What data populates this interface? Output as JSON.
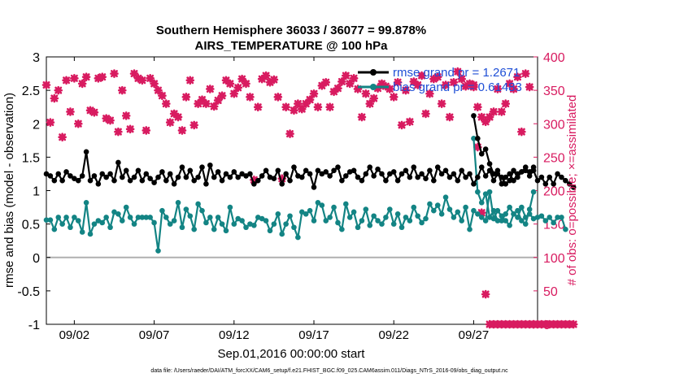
{
  "chart_data": {
    "type": "line",
    "title": "Southern Hemisphere 36033 / 36077 = 99.878%",
    "subtitle": "AIRS_TEMPERATURE @ 100 hPa",
    "xlabel": "Sep.01,2016 00:00:00 start",
    "ylabel_left": "rmse and bias (model - observation)",
    "ylabel_right": "# of obs: o=possible; ×=assimilated",
    "ylim_left": [
      -1,
      3
    ],
    "ylim_right": [
      0,
      400
    ],
    "xlim": [
      0.25,
      31.0
    ],
    "yticks_left": [
      "3",
      "2.5",
      "2",
      "1.5",
      "1",
      "0.5",
      "0",
      "-0.5",
      "-1"
    ],
    "yticks_right": [
      "400",
      "350",
      "300",
      "250",
      "200",
      "150",
      "100",
      "50",
      "0"
    ],
    "xticks": [
      {
        "label": "09/02",
        "day": 2
      },
      {
        "label": "09/07",
        "day": 7
      },
      {
        "label": "09/12",
        "day": 12
      },
      {
        "label": "09/17",
        "day": 17
      },
      {
        "label": "09/22",
        "day": 22
      },
      {
        "label": "09/27",
        "day": 27
      }
    ],
    "legend": [
      {
        "name": "rmse grand pr = 1.2671",
        "color": "#000000"
      },
      {
        "name": "bias grand pr = 0.61483",
        "color": "#138484"
      }
    ],
    "footer": "data file: /Users/raeder/DAI/ATM_forcXX/CAM6_setup/f.e21.FHIST_BGC.f09_025.CAM6assim.011/Diags_NTrS_2016-09/obs_diag_output.nc",
    "colors": {
      "rmse": "#000000",
      "bias": "#138484",
      "obs": "#d81b60",
      "zero_line": "#b0b0b0"
    },
    "start_day": 0.25,
    "step_days": 0.25,
    "series": [
      {
        "name": "rmse",
        "segments": [
          {
            "start": 0,
            "values": [
              1.25,
              1.22,
              1.15,
              1.25,
              1.15,
              1.28,
              1.22,
              1.18,
              1.15,
              1.22,
              1.58,
              1.15,
              1.22,
              1.1,
              1.25,
              1.2,
              1.25,
              1.15,
              1.42,
              1.2,
              1.3,
              1.15,
              1.2,
              1.3,
              1.15,
              1.25,
              1.18,
              1.12,
              1.2,
              1.28,
              1.15,
              1.25,
              1.1,
              1.2,
              1.35,
              1.2,
              1.3,
              1.15,
              1.2,
              1.35,
              1.1,
              1.38,
              1.2,
              1.28,
              1.15,
              1.25,
              1.2,
              1.28,
              1.2,
              1.25,
              1.22,
              1.25,
              1.1,
              1.15,
              1.22,
              1.3,
              1.2,
              1.18,
              1.3,
              1.1,
              1.25,
              1.15,
              1.35,
              1.22,
              1.2,
              1.3,
              1.25,
              1.05,
              1.3,
              1.25,
              1.28,
              1.22,
              1.3,
              1.35,
              1.15,
              1.22,
              1.28,
              1.3,
              1.2,
              1.15,
              1.25,
              1.35,
              1.22,
              1.32,
              1.25,
              1.15,
              1.25,
              1.28,
              1.15,
              1.25,
              1.3,
              1.2,
              1.35,
              1.2,
              1.25,
              1.18,
              1.3,
              1.15,
              1.35,
              1.25,
              1.3,
              1.2,
              1.25,
              1.15,
              1.3,
              1.2,
              1.25,
              1.1,
              1.2,
              1.35,
              1.22,
              1.3,
              1.15,
              1.25,
              1.2,
              1.1,
              1.15,
              1.3,
              1.2,
              1.28,
              1.35,
              1.22,
              1.3,
              1.15,
              1.2,
              1.1,
              1.2,
              1.1,
              1.25,
              1.2,
              1.15,
              1.1,
              1.05
            ]
          },
          {
            "start": 107,
            "values": [
              2.12,
              1.78,
              1.55,
              1.62,
              1.4,
              1.25,
              1.3,
              1.1,
              1.2,
              1.25,
              1.15,
              1.25,
              1.28,
              1.3,
              1.28,
              1.35
            ]
          }
        ]
      },
      {
        "name": "bias",
        "segments": [
          {
            "start": 0,
            "values": [
              0.56,
              0.56,
              0.42,
              0.6,
              0.5,
              0.6,
              0.45,
              0.6,
              0.55,
              0.38,
              0.82,
              0.35,
              0.5,
              0.55,
              0.52,
              0.6,
              0.45,
              0.68,
              0.65,
              0.55,
              0.75,
              0.6,
              0.5,
              0.6,
              0.6,
              0.6,
              0.6,
              0.52,
              0.1,
              0.7,
              0.6,
              0.5,
              0.55,
              0.82,
              0.45,
              0.72,
              0.62,
              0.42,
              0.8,
              0.7,
              0.52,
              0.6,
              0.42,
              0.6,
              0.5,
              0.4,
              0.75,
              0.5,
              0.58,
              0.55,
              0.45,
              0.5,
              0.48,
              0.6,
              0.58,
              0.55,
              0.4,
              0.5,
              0.65,
              0.35,
              0.5,
              0.62,
              0.45,
              0.3,
              0.68,
              0.65,
              0.7,
              0.55,
              0.82,
              0.78,
              0.55,
              0.6,
              0.75,
              0.52,
              0.42,
              0.8,
              0.6,
              0.68,
              0.45,
              0.55,
              0.72,
              0.48,
              0.62,
              0.55,
              0.5,
              0.6,
              0.72,
              0.5,
              0.65,
              0.45,
              0.6,
              0.55,
              0.75,
              0.62,
              0.52,
              0.58,
              0.8,
              0.7,
              0.78,
              0.65,
              0.9,
              0.72,
              0.6,
              0.68,
              0.55,
              0.75,
              0.42,
              0.7,
              0.65,
              0.6,
              0.55,
              0.98,
              0.58,
              0.7,
              0.62,
              0.55,
              0.48,
              0.65,
              0.6,
              0.75,
              0.6,
              0.65,
              0.58,
              0.6,
              0.62,
              0.55,
              0.6,
              0.52,
              0.6,
              0.6,
              0.42
            ]
          },
          {
            "start": 107,
            "values": [
              1.78,
              0.98,
              0.82,
              0.95,
              0.6,
              0.7,
              0.55,
              0.55,
              0.65,
              0.75,
              0.65,
              0.7,
              0.55,
              0.5,
              0.72,
              0.98
            ]
          }
        ]
      },
      {
        "name": "obs_assimilated",
        "segments": [
          {
            "start": 0,
            "values": [
              358,
              302,
              338,
              350,
              280,
              365,
              318,
              368,
              300,
              360,
              370,
              320,
              317,
              368,
              370,
              308,
              305,
              375,
              288,
              350,
              312,
              292,
              375,
              368,
              365,
              290,
              368,
              360,
              350,
              342,
              330,
              302,
              315,
              310,
              290,
              340,
              365,
              298,
              330,
              336,
              330,
              352,
              326,
              335,
              342,
              365,
              360,
              345,
              354,
              367,
              360,
              340,
              216,
              325,
              367,
              372,
              362,
              366,
              340,
              218,
              325,
              285,
              320,
              330,
              322,
              330,
              336,
              345,
              325,
              357,
              362,
              325,
              348,
              353,
              363,
              372,
              360,
              368,
              352,
              310,
              345,
              330,
              338,
              353,
              360,
              356,
              352,
              340,
              362,
              298,
              350,
              303,
              363,
              358,
              372,
              315,
              345,
              367,
              370,
              330,
              358,
              310,
              362,
              378,
              367,
              356,
              360,
              358,
              265,
              167,
              45,
              0,
              0,
              0,
              0,
              0,
              0,
              0,
              0,
              0,
              0,
              0,
              0,
              0,
              0,
              0,
              0,
              0,
              0,
              0,
              0,
              0,
              0
            ]
          },
          {
            "start": 107,
            "values": [
              355,
              325,
              310,
              303,
              310,
              318,
              352,
              318,
              330,
              360,
              352,
              370,
              288,
              375,
              355,
              0
            ]
          }
        ]
      }
    ]
  }
}
